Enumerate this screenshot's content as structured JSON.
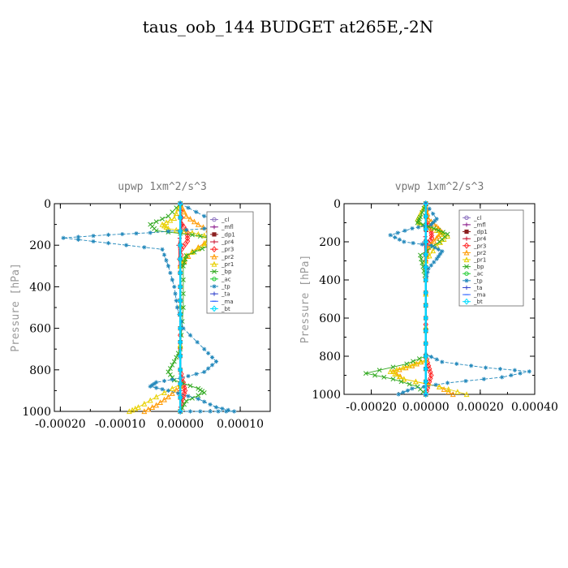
{
  "figure_title": "taus_oob_144  BUDGET at265E,-2N",
  "chart_data": [
    {
      "type": "line",
      "title": "upwp   1xm^2/s^3",
      "xlabel": "",
      "ylabel": "Pressure [hPa]",
      "xlim": [
        -0.00021,
        0.00015
      ],
      "ylim": [
        1000,
        0
      ],
      "xticks": [
        -0.0002,
        -0.0001,
        0.0,
        0.0001
      ],
      "xtick_labels": [
        "-0.00020",
        "-0.00010",
        "0.00000",
        "0.00010"
      ],
      "yticks": [
        0,
        200,
        400,
        600,
        800,
        1000
      ],
      "ytick_labels": [
        "0",
        "200",
        "400",
        "600",
        "800",
        "1000"
      ],
      "grid": false,
      "legend": "top-right",
      "series": [
        {
          "name": "_cl",
          "color": "#8a6fbf",
          "marker": "circle",
          "x": [
            0,
            0,
            0,
            0,
            0,
            0
          ],
          "y": [
            0,
            200,
            400,
            600,
            800,
            1000
          ]
        },
        {
          "name": "_mfl",
          "color": "#8b1a8b",
          "marker": "plus",
          "x": [
            0,
            0,
            0,
            0,
            0,
            0
          ],
          "y": [
            0,
            200,
            400,
            600,
            800,
            1000
          ]
        },
        {
          "name": "_dp1",
          "color": "#8b2020",
          "marker": "square",
          "x": [
            0,
            0,
            0,
            0,
            0,
            0
          ],
          "y": [
            0,
            200,
            400,
            600,
            800,
            1000
          ]
        },
        {
          "name": "_pr4",
          "color": "#c8102e",
          "marker": "plus",
          "x": [
            0,
            3e-06,
            -3e-06,
            0,
            0,
            0
          ],
          "y": [
            0,
            100,
            200,
            400,
            700,
            1000
          ]
        },
        {
          "name": "_pr3",
          "color": "#ff2a2a",
          "marker": "diamond",
          "x": [
            0,
            3e-06,
            1.2e-05,
            1.2e-05,
            2e-06,
            0,
            0,
            5e-06,
            8e-06,
            4e-06,
            0
          ],
          "y": [
            0,
            100,
            140,
            180,
            220,
            300,
            800,
            860,
            900,
            940,
            1000
          ]
        },
        {
          "name": "_pr2",
          "color": "#ff9900",
          "marker": "triangle",
          "x": [
            0,
            1e-05,
            3e-05,
            5.5e-05,
            5e-05,
            2e-05,
            0,
            0,
            -2e-05,
            -4e-05,
            -6e-05
          ],
          "y": [
            0,
            60,
            100,
            140,
            170,
            230,
            300,
            880,
            930,
            970,
            1000
          ]
        },
        {
          "name": "_pr1",
          "color": "#e8d000",
          "marker": "triangle",
          "x": [
            0,
            -1e-05,
            -3e-05,
            -2e-05,
            2e-05,
            5e-05,
            4e-05,
            1e-05,
            0,
            0,
            -4e-05,
            -7e-05,
            -8.5e-05
          ],
          "y": [
            0,
            70,
            100,
            120,
            140,
            160,
            200,
            250,
            300,
            870,
            930,
            980,
            1000
          ]
        },
        {
          "name": "_bp",
          "color": "#33aa22",
          "marker": "x",
          "x": [
            0,
            -2e-05,
            -5e-05,
            -4e-05,
            2e-05,
            6e-05,
            5e-05,
            1e-05,
            5e-06,
            5e-06,
            0,
            -1e-05,
            -2e-05,
            -1e-05,
            3e-05,
            4e-05,
            1e-05,
            0
          ],
          "y": [
            0,
            60,
            100,
            130,
            150,
            170,
            200,
            250,
            300,
            500,
            700,
            760,
            810,
            850,
            890,
            910,
            950,
            1000
          ]
        },
        {
          "name": "_ac",
          "color": "#22cc33",
          "marker": "circle",
          "x": [
            0,
            0,
            0,
            0,
            0,
            0
          ],
          "y": [
            0,
            200,
            400,
            600,
            800,
            1000
          ]
        },
        {
          "name": "_tp",
          "color": "#2288bb",
          "marker": "star",
          "x": [
            0,
            4e-05,
            8e-05,
            4e-05,
            -5e-05,
            -0.00012,
            -0.000195,
            -0.00012,
            -3e-05,
            -2e-05,
            -1e-05,
            -5e-06,
            5e-06,
            4e-05,
            6e-05,
            4e-05,
            0,
            -4e-05,
            -5e-05,
            -2e-05,
            3e-05,
            6e-05,
            9e-05,
            5e-05,
            0
          ],
          "y": [
            0,
            60,
            100,
            120,
            140,
            150,
            165,
            190,
            220,
            300,
            400,
            500,
            600,
            700,
            760,
            810,
            840,
            860,
            880,
            900,
            940,
            980,
            1000,
            1000,
            1000
          ]
        },
        {
          "name": "_ta",
          "color": "#3344cc",
          "marker": "plus",
          "x": [
            0,
            0,
            0,
            0,
            0,
            0
          ],
          "y": [
            0,
            200,
            400,
            600,
            800,
            1000
          ]
        },
        {
          "name": "_ma",
          "color": "#3366ff",
          "marker": "dash",
          "x": [
            0,
            0,
            0,
            0,
            0,
            0
          ],
          "y": [
            0,
            200,
            400,
            600,
            800,
            1000
          ]
        },
        {
          "name": "_bt",
          "color": "#00ddff",
          "marker": "diamond",
          "x": [
            0,
            0,
            0,
            0,
            0,
            0
          ],
          "y": [
            0,
            200,
            400,
            600,
            800,
            1000
          ]
        }
      ]
    },
    {
      "type": "line",
      "title": "vpwp   1xm^2/s^3",
      "xlabel": "",
      "ylabel": "Pressure [hPa]",
      "xlim": [
        -0.0003,
        0.0004
      ],
      "ylim": [
        1000,
        0
      ],
      "xticks": [
        -0.0002,
        0.0,
        0.0002,
        0.0004
      ],
      "xtick_labels": [
        "-0.00020",
        "0.00000",
        "0.00020",
        "0.00040"
      ],
      "yticks": [
        0,
        200,
        400,
        600,
        800,
        1000
      ],
      "ytick_labels": [
        "0",
        "200",
        "400",
        "600",
        "800",
        "1000"
      ],
      "grid": false,
      "legend": "top-right",
      "series": [
        {
          "name": "_cl",
          "color": "#8a6fbf",
          "marker": "circle",
          "x": [
            0,
            0,
            0,
            0,
            0,
            0
          ],
          "y": [
            0,
            200,
            400,
            600,
            800,
            1000
          ]
        },
        {
          "name": "_mfl",
          "color": "#8b1a8b",
          "marker": "plus",
          "x": [
            0,
            0,
            0,
            0,
            0,
            0
          ],
          "y": [
            0,
            200,
            400,
            600,
            800,
            1000
          ]
        },
        {
          "name": "_dp1",
          "color": "#8b2020",
          "marker": "square",
          "x": [
            0,
            0,
            0,
            0,
            0,
            0
          ],
          "y": [
            0,
            200,
            400,
            600,
            800,
            1000
          ]
        },
        {
          "name": "_pr4",
          "color": "#c8102e",
          "marker": "plus",
          "x": [
            0,
            5e-06,
            -5e-06,
            0,
            0
          ],
          "y": [
            0,
            120,
            200,
            400,
            1000
          ]
        },
        {
          "name": "_pr3",
          "color": "#ff2a2a",
          "marker": "diamond",
          "x": [
            0,
            5e-06,
            2e-05,
            2.2e-05,
            5e-06,
            0,
            0,
            1e-05,
            2e-05,
            1e-05,
            0
          ],
          "y": [
            0,
            100,
            140,
            180,
            220,
            300,
            800,
            850,
            900,
            950,
            1000
          ]
        },
        {
          "name": "_pr2",
          "color": "#ff9900",
          "marker": "triangle",
          "x": [
            0,
            1e-05,
            4e-05,
            6e-05,
            4e-05,
            1e-05,
            0,
            0,
            -5e-05,
            -0.00012,
            -8e-05,
            5e-05,
            0.0001
          ],
          "y": [
            0,
            80,
            120,
            150,
            180,
            230,
            300,
            820,
            850,
            880,
            920,
            960,
            1000
          ]
        },
        {
          "name": "_pr1",
          "color": "#e8d000",
          "marker": "triangle",
          "x": [
            0,
            -3e-05,
            -2e-05,
            4e-05,
            8e-05,
            4e-05,
            0,
            0,
            -6e-05,
            -0.00013,
            -8e-05,
            5e-05,
            0.00015
          ],
          "y": [
            0,
            80,
            110,
            140,
            170,
            220,
            300,
            820,
            850,
            880,
            920,
            960,
            1000
          ]
        },
        {
          "name": "_bp",
          "color": "#33aa22",
          "marker": "x",
          "x": [
            0,
            -2e-05,
            -3e-05,
            3e-05,
            8e-05,
            5e-05,
            -2e-05,
            -1e-05,
            0,
            0,
            -7e-05,
            -0.00022,
            -0.00012,
            -3e-05,
            0
          ],
          "y": [
            0,
            70,
            100,
            130,
            160,
            200,
            270,
            330,
            400,
            800,
            840,
            890,
            920,
            960,
            1000
          ]
        },
        {
          "name": "_ac",
          "color": "#22cc33",
          "marker": "circle",
          "x": [
            0,
            0,
            0,
            0,
            0,
            0
          ],
          "y": [
            0,
            200,
            400,
            600,
            800,
            1000
          ]
        },
        {
          "name": "_tp",
          "color": "#2288bb",
          "marker": "star",
          "x": [
            0,
            4e-05,
            2e-05,
            -5e-05,
            -0.00013,
            -8e-05,
            2e-05,
            6e-05,
            4e-05,
            1e-05,
            0,
            0,
            6e-05,
            0.00022,
            0.00038,
            0.00028,
            8e-05,
            -5e-05,
            -0.0001
          ],
          "y": [
            0,
            80,
            110,
            130,
            165,
            200,
            220,
            250,
            290,
            340,
            400,
            790,
            830,
            860,
            880,
            910,
            940,
            970,
            1000
          ]
        },
        {
          "name": "_ta",
          "color": "#3344cc",
          "marker": "plus",
          "x": [
            0,
            0,
            0,
            0,
            0,
            0
          ],
          "y": [
            0,
            200,
            400,
            600,
            800,
            1000
          ]
        },
        {
          "name": "_ma",
          "color": "#3366ff",
          "marker": "dash",
          "x": [
            0,
            0,
            0,
            0,
            0,
            0
          ],
          "y": [
            0,
            200,
            400,
            600,
            800,
            1000
          ]
        },
        {
          "name": "_bt",
          "color": "#00ddff",
          "marker": "diamond",
          "x": [
            0,
            0,
            0,
            0,
            0,
            0
          ],
          "y": [
            0,
            200,
            400,
            600,
            800,
            1000
          ]
        }
      ]
    }
  ]
}
